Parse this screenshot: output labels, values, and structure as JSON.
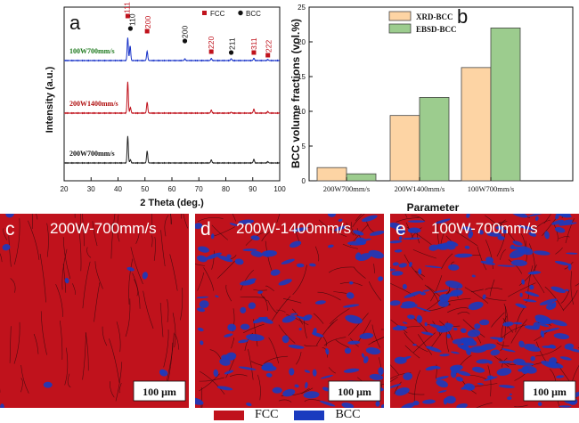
{
  "colors": {
    "fcc_red": "#c0121c",
    "bcc_blue": "#1a3bbf",
    "xrd_bar": "#fdd4a4",
    "ebsd_bar": "#9ccc8e",
    "xrd_black": "#222222",
    "xrd_red": "#c0121c",
    "xrd_blue": "#1530c8",
    "xrd_green_label": "#1f7a1f",
    "xrd_red_label": "#b01010"
  },
  "chart_data": [
    {
      "panel": "a",
      "type": "line",
      "xlabel": "2 Theta (deg.)",
      "ylabel": "Intensity (a.u.)",
      "xlim": [
        20,
        100
      ],
      "xticks": [
        20,
        30,
        40,
        50,
        60,
        70,
        80,
        90,
        100
      ],
      "legend": [
        {
          "name": "FCC",
          "marker": "square",
          "color": "#c0121c"
        },
        {
          "name": "BCC",
          "marker": "circle",
          "color": "#111111"
        }
      ],
      "series": [
        {
          "name": "200W700mm/s",
          "color": "#222222",
          "label_color": "#111111",
          "offset": 0,
          "peaks": [
            [
              43.6,
              1.0
            ],
            [
              44.6,
              0.12
            ],
            [
              50.8,
              0.45
            ],
            [
              74.6,
              0.12
            ],
            [
              90.4,
              0.14
            ],
            [
              95.6,
              0.05
            ]
          ]
        },
        {
          "name": "200W1400mm/s",
          "color": "#c0121c",
          "label_color": "#b01010",
          "offset": 1,
          "peaks": [
            [
              43.6,
              1.0
            ],
            [
              44.6,
              0.18
            ],
            [
              50.8,
              0.35
            ],
            [
              74.6,
              0.1
            ],
            [
              82.0,
              0.03
            ],
            [
              90.4,
              0.13
            ],
            [
              95.6,
              0.05
            ]
          ]
        },
        {
          "name": "100W700mm/s",
          "color": "#1530c8",
          "label_color": "#1f7a1f",
          "offset": 2,
          "peaks": [
            [
              43.6,
              0.85
            ],
            [
              44.5,
              0.55
            ],
            [
              50.8,
              0.35
            ],
            [
              64.8,
              0.06
            ],
            [
              74.6,
              0.08
            ],
            [
              82.0,
              0.07
            ],
            [
              90.4,
              0.09
            ],
            [
              95.6,
              0.04
            ]
          ]
        }
      ],
      "peak_labels": [
        {
          "text": "111",
          "phase": "FCC",
          "x": 43.6
        },
        {
          "text": "110",
          "phase": "BCC",
          "x": 44.6
        },
        {
          "text": "200",
          "phase": "FCC",
          "x": 50.8
        },
        {
          "text": "200",
          "phase": "BCC",
          "x": 64.8
        },
        {
          "text": "220",
          "phase": "FCC",
          "x": 74.6
        },
        {
          "text": "211",
          "phase": "BCC",
          "x": 82.0
        },
        {
          "text": "311",
          "phase": "FCC",
          "x": 90.4
        },
        {
          "text": "222",
          "phase": "FCC",
          "x": 95.6
        }
      ]
    },
    {
      "panel": "b",
      "type": "bar",
      "xlabel": "Parameter",
      "ylabel": "BCC volume fractions (vol.%)",
      "ylim": [
        0,
        25
      ],
      "yticks": [
        0,
        5,
        10,
        15,
        20,
        25
      ],
      "categories": [
        "200W700mm/s",
        "200W1400mm/s",
        "100W700mm/s"
      ],
      "series": [
        {
          "name": "XRD-BCC",
          "color": "#fdd4a4",
          "values": [
            1.9,
            9.4,
            16.3
          ]
        },
        {
          "name": "EBSD-BCC",
          "color": "#9ccc8e",
          "values": [
            1.0,
            12.0,
            22.0
          ]
        }
      ],
      "legend_position": "top-left"
    }
  ],
  "panels_maps": [
    {
      "letter": "c",
      "title": "200W-700mm/s",
      "scale": "100 μm",
      "bcc_fraction": 0.01
    },
    {
      "letter": "d",
      "title": "200W-1400mm/s",
      "scale": "100 μm",
      "bcc_fraction": 0.12
    },
    {
      "letter": "e",
      "title": "100W-700mm/s",
      "scale": "100 μm",
      "bcc_fraction": 0.22
    }
  ],
  "map_legend": [
    {
      "name": "FCC",
      "color": "#c0121c"
    },
    {
      "name": "BCC",
      "color": "#1a3bbf"
    }
  ]
}
